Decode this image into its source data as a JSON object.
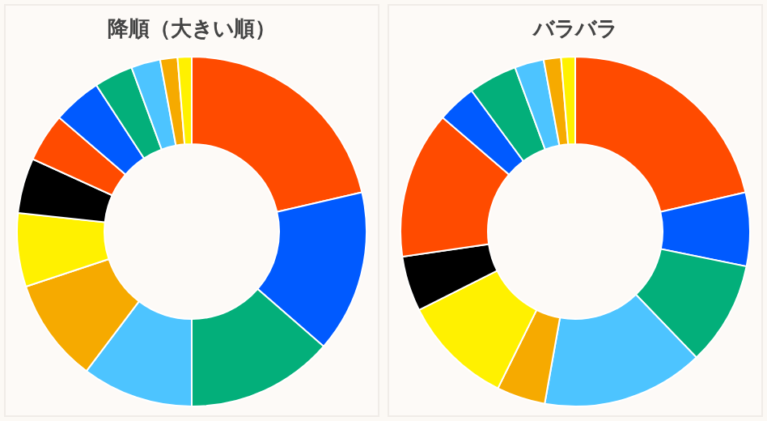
{
  "chart_data": [
    {
      "type": "donut",
      "title": "降順（大きい順）",
      "categories": [
        null,
        null,
        null,
        null,
        null,
        null,
        null,
        null,
        null,
        null,
        null,
        null,
        null
      ],
      "values": [
        21.4,
        15.0,
        13.6,
        10.3,
        9.6,
        6.8,
        5.1,
        4.5,
        4.5,
        3.6,
        2.7,
        1.6,
        1.3
      ],
      "colors": [
        "#ff4b00",
        "#005aff",
        "#03af7a",
        "#4dc4ff",
        "#f6aa00",
        "#fff100",
        "#000000",
        "#ff4b00",
        "#005aff",
        "#03af7a",
        "#4dc4ff",
        "#f6aa00",
        "#fff100"
      ]
    },
    {
      "type": "donut",
      "title": "バラバラ",
      "categories": [
        null,
        null,
        null,
        null,
        null,
        null,
        null,
        null,
        null,
        null,
        null,
        null,
        null
      ],
      "values": [
        21.4,
        6.8,
        9.6,
        15.0,
        4.5,
        10.3,
        5.1,
        13.6,
        3.6,
        4.5,
        2.7,
        1.6,
        1.3
      ],
      "colors": [
        "#ff4b00",
        "#005aff",
        "#03af7a",
        "#4dc4ff",
        "#f6aa00",
        "#fff100",
        "#000000",
        "#ff4b00",
        "#005aff",
        "#03af7a",
        "#4dc4ff",
        "#f6aa00",
        "#fff100"
      ]
    }
  ]
}
